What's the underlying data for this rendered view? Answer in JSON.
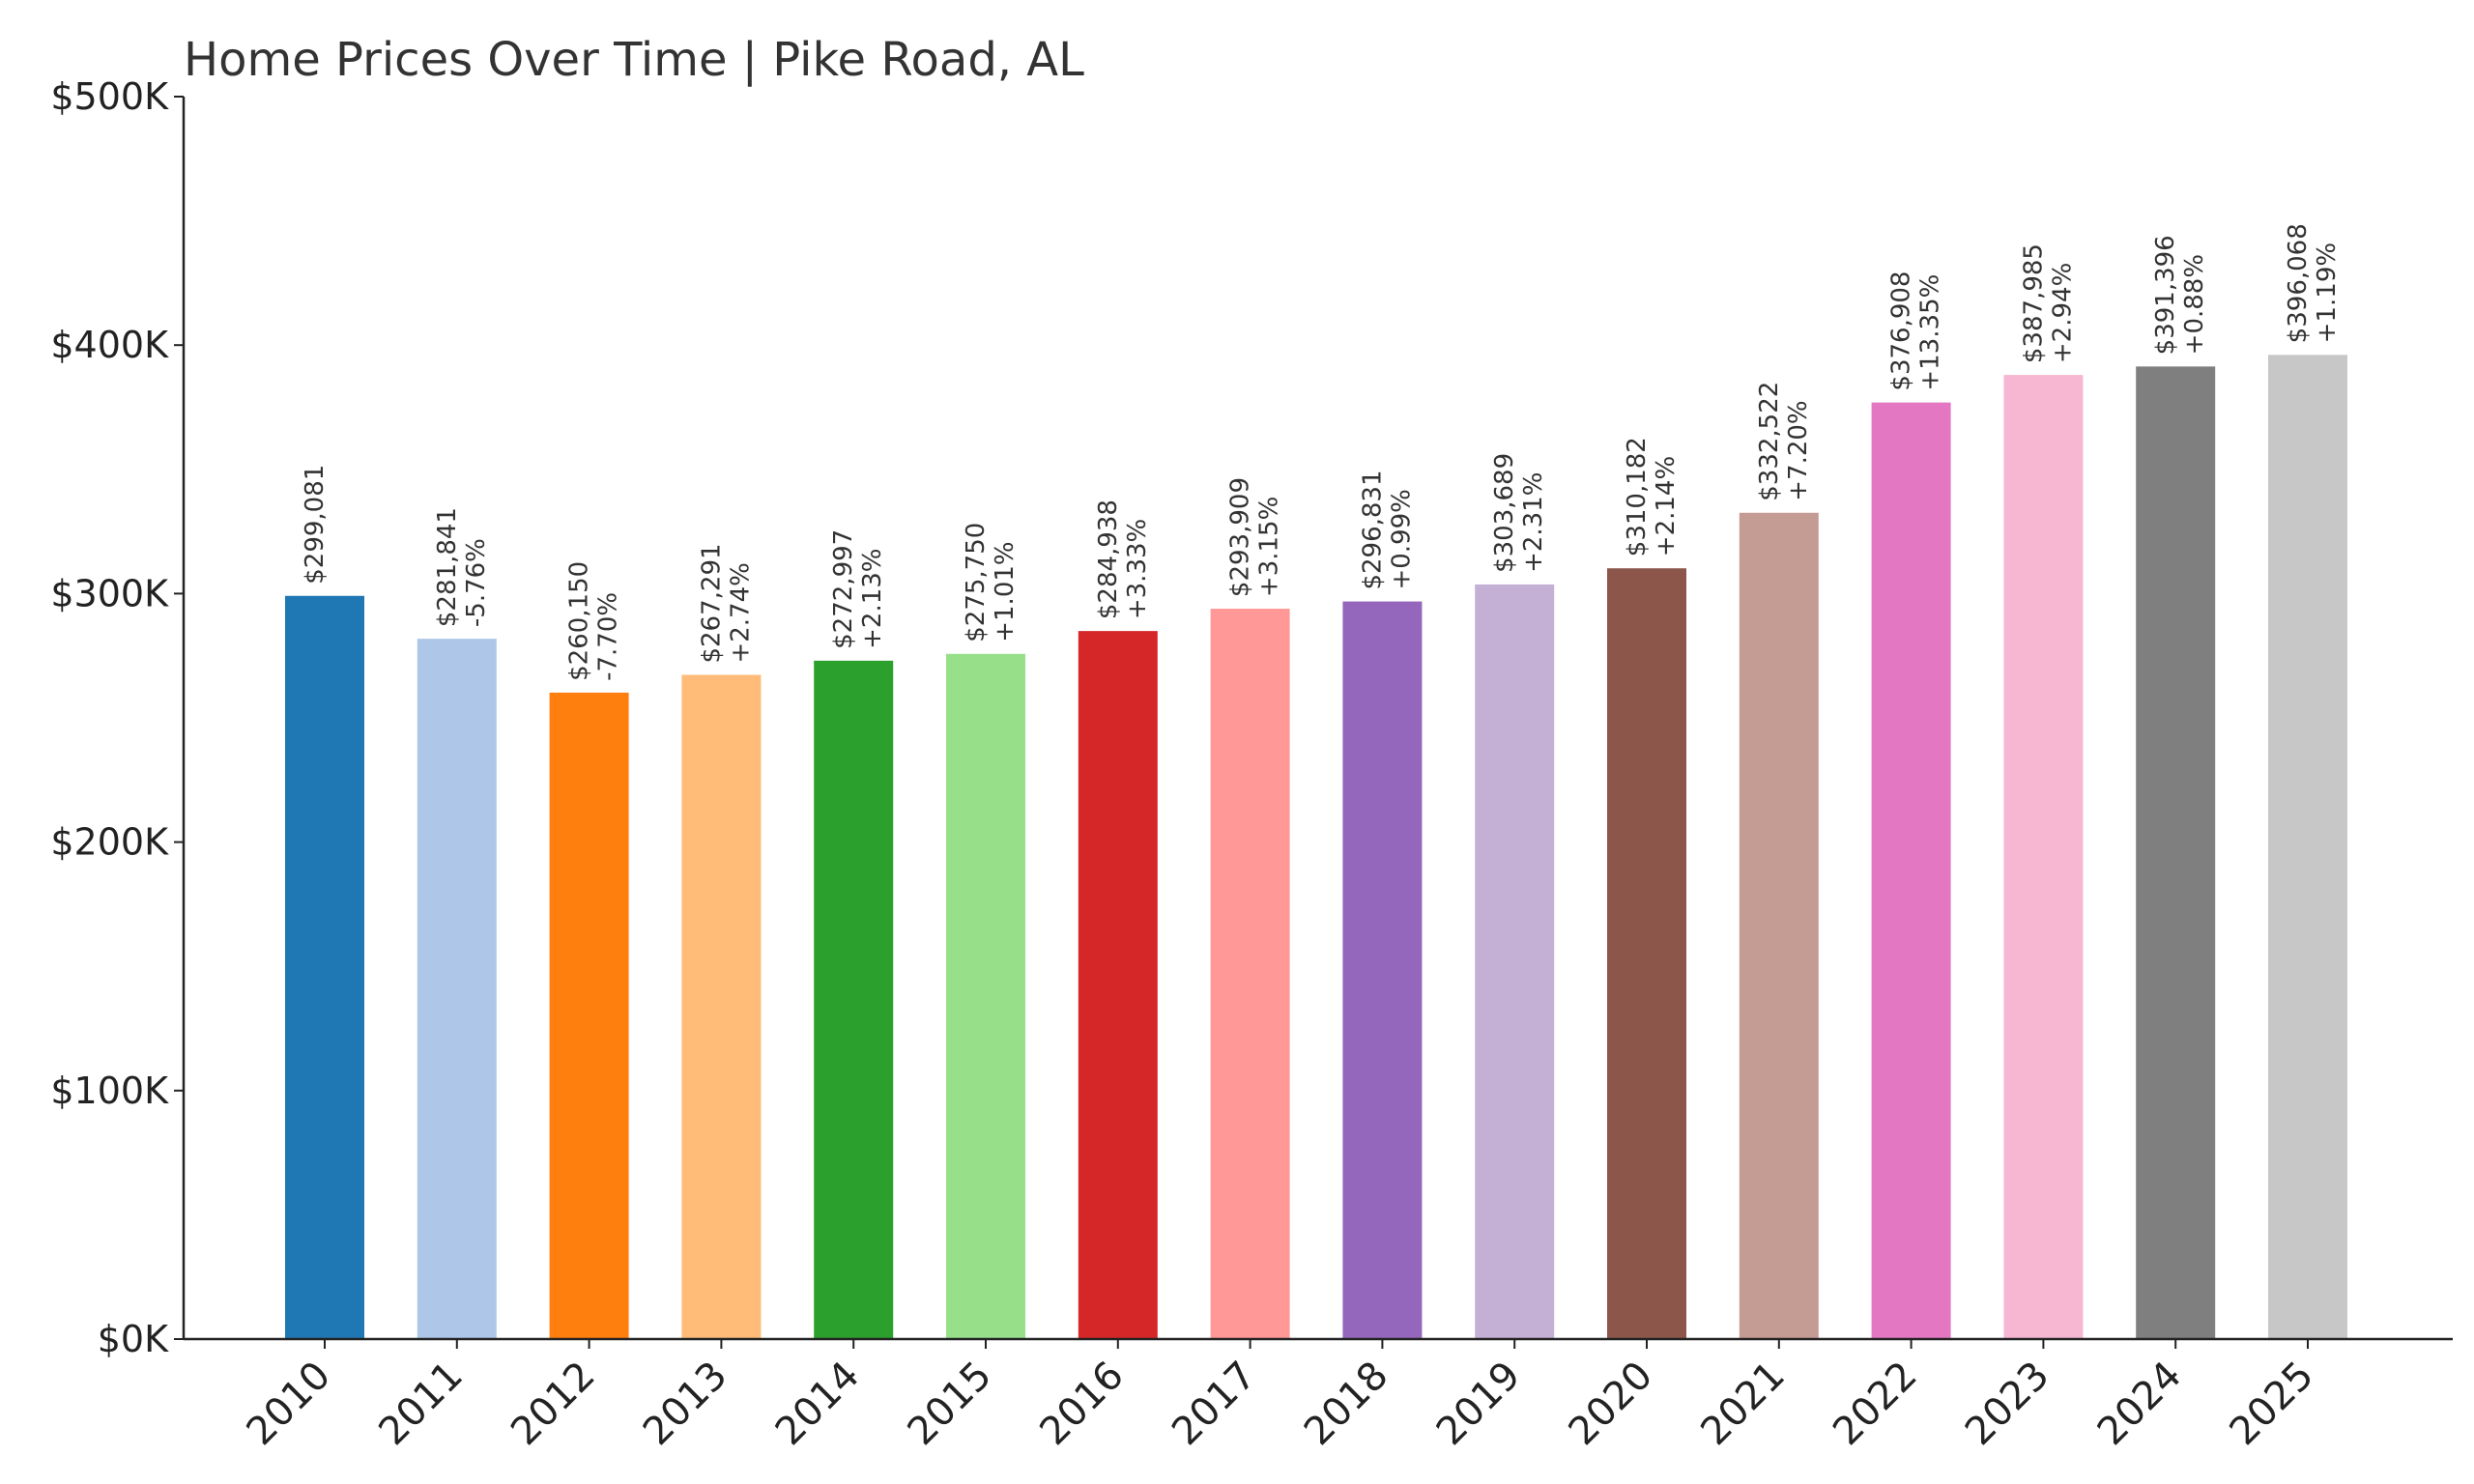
{
  "chart_data": {
    "type": "bar",
    "title": "Home Prices Over Time | Pike Road, AL",
    "xlabel": "",
    "ylabel": "",
    "ylim": [
      0,
      500000
    ],
    "yticks": [
      0,
      100000,
      200000,
      300000,
      400000,
      500000
    ],
    "ytick_labels": [
      "$0K",
      "$100K",
      "$200K",
      "$300K",
      "$400K",
      "$500K"
    ],
    "grid": false,
    "categories": [
      "2010",
      "2011",
      "2012",
      "2013",
      "2014",
      "2015",
      "2016",
      "2017",
      "2018",
      "2019",
      "2020",
      "2021",
      "2022",
      "2023",
      "2024",
      "2025"
    ],
    "values": [
      299081,
      281841,
      260150,
      267291,
      272997,
      275750,
      284938,
      293909,
      296831,
      303689,
      310182,
      332522,
      376908,
      387985,
      391396,
      396068
    ],
    "value_labels": [
      "$299,081",
      "$281,841",
      "$260,150",
      "$267,291",
      "$272,997",
      "$275,750",
      "$284,938",
      "$293,909",
      "$296,831",
      "$303,689",
      "$310,182",
      "$332,522",
      "$376,908",
      "$387,985",
      "$391,396",
      "$396,068"
    ],
    "change_labels": [
      "",
      "-5.76%",
      "-7.70%",
      "+2.74%",
      "+2.13%",
      "+1.01%",
      "+3.33%",
      "+3.15%",
      "+0.99%",
      "+2.31%",
      "+2.14%",
      "+7.20%",
      "+13.35%",
      "+2.94%",
      "+0.88%",
      "+1.19%"
    ],
    "colors": [
      "#1f77b4",
      "#aec7e8",
      "#ff7f0e",
      "#ffbb78",
      "#2ca02c",
      "#98df8a",
      "#d62728",
      "#ff9896",
      "#9467bd",
      "#c5b0d5",
      "#8c564b",
      "#c49c94",
      "#e377c2",
      "#f7b6d2",
      "#7f7f7f",
      "#c7c7c7"
    ]
  }
}
